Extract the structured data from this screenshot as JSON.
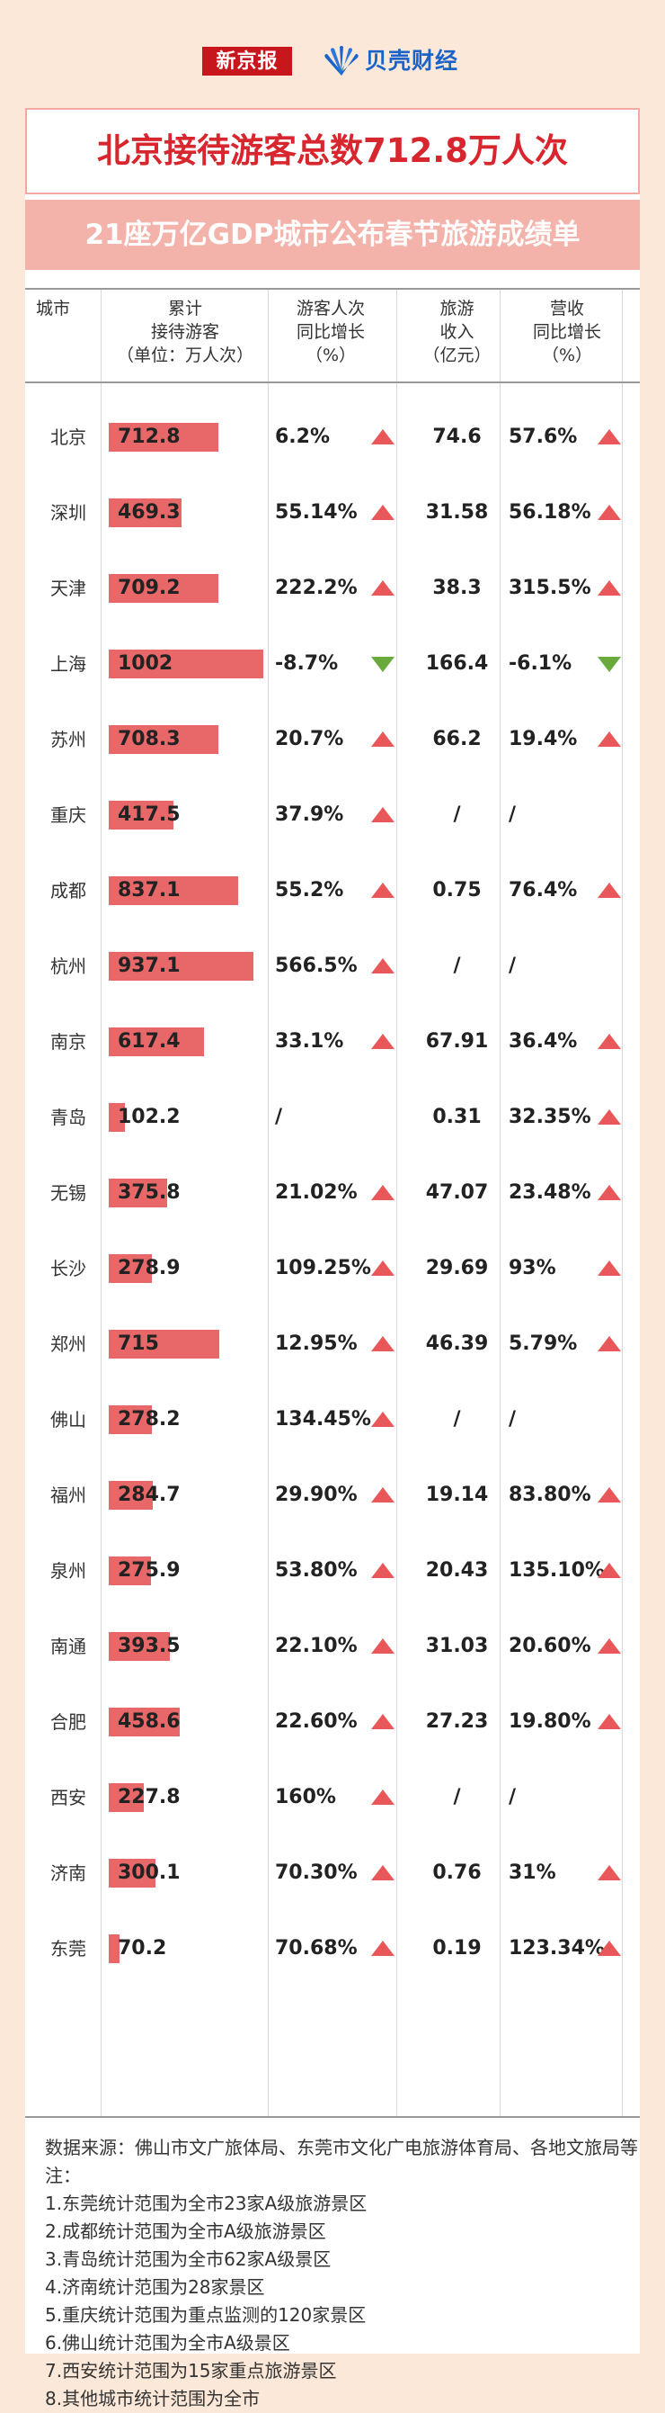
{
  "header": {
    "logo_left": "新京报",
    "logo_right": "贝壳财经",
    "brand_color": "#c8161d",
    "brand_blue": "#1a63c9"
  },
  "title": "北京接待游客总数712.8万人次",
  "subtitle": "21座万亿GDP城市公布春节旅游成绩单",
  "columns": {
    "city": "城市",
    "visitors": [
      "累计",
      "接待游客",
      "（单位：万人次）"
    ],
    "visitor_growth": [
      "游客人次",
      "同比增长",
      "（%）"
    ],
    "revenue": [
      "旅游",
      "收入",
      "（亿元）"
    ],
    "revenue_growth": [
      "营收",
      "同比增长",
      "（%）"
    ]
  },
  "colors": {
    "bar": "#e8686a",
    "up": "#e8585a",
    "down": "#6aaa3c",
    "title": "#d8262f"
  },
  "chart_data": {
    "type": "table",
    "rows": [
      {
        "city": "北京",
        "visitors": 712.8,
        "visitors_text": "712.8",
        "visitor_growth": "6.2%",
        "visitor_dir": "up",
        "revenue": "74.6",
        "revenue_growth": "57.6%",
        "revenue_dir": "up"
      },
      {
        "city": "深圳",
        "visitors": 469.3,
        "visitors_text": "469.3",
        "visitor_growth": "55.14%",
        "visitor_dir": "up",
        "revenue": "31.58",
        "revenue_growth": "56.18%",
        "revenue_dir": "up"
      },
      {
        "city": "天津",
        "visitors": 709.2,
        "visitors_text": "709.2",
        "visitor_growth": "222.2%",
        "visitor_dir": "up",
        "revenue": "38.3",
        "revenue_growth": "315.5%",
        "revenue_dir": "up"
      },
      {
        "city": "上海",
        "visitors": 1002,
        "visitors_text": "1002",
        "visitor_growth": "-8.7%",
        "visitor_dir": "down",
        "revenue": "166.4",
        "revenue_growth": "-6.1%",
        "revenue_dir": "down"
      },
      {
        "city": "苏州",
        "visitors": 708.3,
        "visitors_text": "708.3",
        "visitor_growth": "20.7%",
        "visitor_dir": "up",
        "revenue": "66.2",
        "revenue_growth": "19.4%",
        "revenue_dir": "up"
      },
      {
        "city": "重庆",
        "visitors": 417.5,
        "visitors_text": "417.5",
        "visitor_growth": "37.9%",
        "visitor_dir": "up",
        "revenue": "/",
        "revenue_growth": "/",
        "revenue_dir": ""
      },
      {
        "city": "成都",
        "visitors": 837.1,
        "visitors_text": "837.1",
        "visitor_growth": "55.2%",
        "visitor_dir": "up",
        "revenue": "0.75",
        "revenue_growth": "76.4%",
        "revenue_dir": "up"
      },
      {
        "city": "杭州",
        "visitors": 937.1,
        "visitors_text": "937.1",
        "visitor_growth": "566.5%",
        "visitor_dir": "up",
        "revenue": "/",
        "revenue_growth": "/",
        "revenue_dir": ""
      },
      {
        "city": "南京",
        "visitors": 617.4,
        "visitors_text": "617.4",
        "visitor_growth": "33.1%",
        "visitor_dir": "up",
        "revenue": "67.91",
        "revenue_growth": "36.4%",
        "revenue_dir": "up"
      },
      {
        "city": "青岛",
        "visitors": 102.2,
        "visitors_text": "102.2",
        "visitor_growth": "/",
        "visitor_dir": "",
        "revenue": "0.31",
        "revenue_growth": "32.35%",
        "revenue_dir": "up"
      },
      {
        "city": "无锡",
        "visitors": 375.8,
        "visitors_text": "375.8",
        "visitor_growth": "21.02%",
        "visitor_dir": "up",
        "revenue": "47.07",
        "revenue_growth": "23.48%",
        "revenue_dir": "up"
      },
      {
        "city": "长沙",
        "visitors": 278.9,
        "visitors_text": "278.9",
        "visitor_growth": "109.25%",
        "visitor_dir": "up",
        "revenue": "29.69",
        "revenue_growth": "93%",
        "revenue_dir": "up"
      },
      {
        "city": "郑州",
        "visitors": 715,
        "visitors_text": "715",
        "visitor_growth": "12.95%",
        "visitor_dir": "up",
        "revenue": "46.39",
        "revenue_growth": "5.79%",
        "revenue_dir": "up"
      },
      {
        "city": "佛山",
        "visitors": 278.2,
        "visitors_text": "278.2",
        "visitor_growth": "134.45%",
        "visitor_dir": "up",
        "revenue": "/",
        "revenue_growth": "/",
        "revenue_dir": ""
      },
      {
        "city": "福州",
        "visitors": 284.7,
        "visitors_text": "284.7",
        "visitor_growth": "29.90%",
        "visitor_dir": "up",
        "revenue": "19.14",
        "revenue_growth": "83.80%",
        "revenue_dir": "up"
      },
      {
        "city": "泉州",
        "visitors": 275.9,
        "visitors_text": "275.9",
        "visitor_growth": "53.80%",
        "visitor_dir": "up",
        "revenue": "20.43",
        "revenue_growth": "135.10%",
        "revenue_dir": "up"
      },
      {
        "city": "南通",
        "visitors": 393.5,
        "visitors_text": "393.5",
        "visitor_growth": "22.10%",
        "visitor_dir": "up",
        "revenue": "31.03",
        "revenue_growth": "20.60%",
        "revenue_dir": "up"
      },
      {
        "city": "合肥",
        "visitors": 458.6,
        "visitors_text": "458.6",
        "visitor_growth": "22.60%",
        "visitor_dir": "up",
        "revenue": "27.23",
        "revenue_growth": "19.80%",
        "revenue_dir": "up"
      },
      {
        "city": "西安",
        "visitors": 227.8,
        "visitors_text": "227.8",
        "visitor_growth": "160%",
        "visitor_dir": "up",
        "revenue": "/",
        "revenue_growth": "/",
        "revenue_dir": ""
      },
      {
        "city": "济南",
        "visitors": 300.1,
        "visitors_text": "300.1",
        "visitor_growth": "70.30%",
        "visitor_dir": "up",
        "revenue": "0.76",
        "revenue_growth": "31%",
        "revenue_dir": "up"
      },
      {
        "city": "东莞",
        "visitors": 70.2,
        "visitors_text": "70.2",
        "visitor_growth": "70.68%",
        "visitor_dir": "up",
        "revenue": "0.19",
        "revenue_growth": "123.34%",
        "revenue_dir": "up"
      }
    ]
  },
  "notes": {
    "source": "数据来源：佛山市文广旅体局、东莞市文化广电旅游体育局、各地文旅局等",
    "label": "注：",
    "items": [
      "1.东莞统计范围为全市23家A级旅游景区",
      "2.成都统计范围为全市A级旅游景区",
      "3.青岛统计范围为全市62家A级景区",
      "4.济南统计范围为28家景区",
      "5.重庆统计范围为重点监测的120家景区",
      "6.佛山统计范围为全市A级景区",
      "7.西安统计范围为15家重点旅游景区",
      "8.其他城市统计范围为全市"
    ]
  }
}
